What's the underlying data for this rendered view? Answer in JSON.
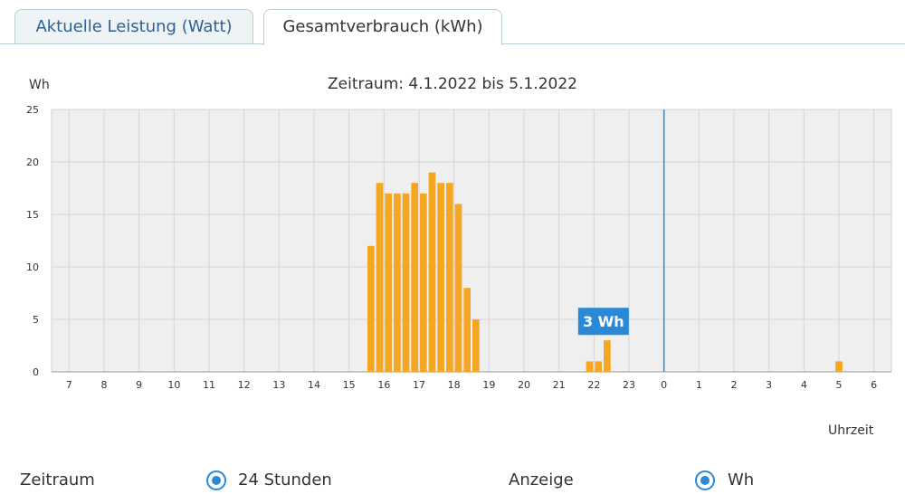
{
  "tabs": [
    {
      "label": "Aktuelle Leistung (Watt)",
      "active": false
    },
    {
      "label": "Gesamtverbrauch (kWh)",
      "active": true
    }
  ],
  "chart_data": {
    "type": "bar",
    "title": "Zeitraum: 4.1.2022 bis 5.1.2022",
    "ylabel": "Wh",
    "xlabel": "Uhrzeit",
    "ylim": [
      0,
      25
    ],
    "yticks": [
      0,
      5,
      10,
      15,
      20,
      25
    ],
    "xticks": [
      "7",
      "8",
      "9",
      "10",
      "11",
      "12",
      "13",
      "14",
      "15",
      "16",
      "17",
      "18",
      "19",
      "20",
      "21",
      "22",
      "23",
      "0",
      "1",
      "2",
      "3",
      "4",
      "5",
      "6"
    ],
    "x_range_hours": [
      6.5,
      30.5
    ],
    "midnight_marker_hour": 24,
    "bar_width_hours": 0.25,
    "grid": true,
    "bar_color": "#f5a623",
    "bars": [
      {
        "hour": 15.625,
        "value": 12
      },
      {
        "hour": 15.875,
        "value": 18
      },
      {
        "hour": 16.125,
        "value": 17
      },
      {
        "hour": 16.375,
        "value": 17
      },
      {
        "hour": 16.625,
        "value": 17
      },
      {
        "hour": 16.875,
        "value": 18
      },
      {
        "hour": 17.125,
        "value": 17
      },
      {
        "hour": 17.375,
        "value": 19
      },
      {
        "hour": 17.625,
        "value": 18
      },
      {
        "hour": 17.875,
        "value": 18
      },
      {
        "hour": 18.125,
        "value": 16
      },
      {
        "hour": 18.375,
        "value": 8
      },
      {
        "hour": 18.625,
        "value": 5
      },
      {
        "hour": 21.875,
        "value": 1
      },
      {
        "hour": 22.125,
        "value": 1
      },
      {
        "hour": 22.375,
        "value": 3
      },
      {
        "hour": 29.0,
        "value": 1
      }
    ],
    "tooltip": {
      "text": "3 Wh",
      "bar_index": 15
    }
  },
  "controls": {
    "period_label": "Zeitraum",
    "period_option": "24 Stunden",
    "display_label": "Anzeige",
    "display_option": "Wh"
  },
  "colors": {
    "accent": "#2a89d6",
    "tooltip_bg": "#2a89d6",
    "plot_bg": "#efefef",
    "grid": "#d6d6d6"
  }
}
